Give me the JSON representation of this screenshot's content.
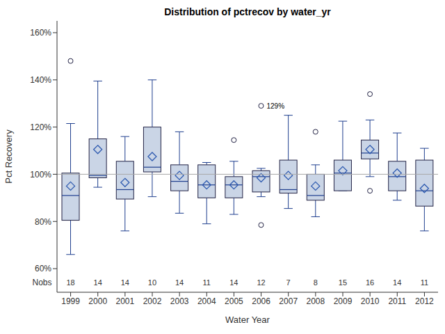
{
  "chart_data": {
    "type": "box",
    "title": "Distribution of pctrecov by water_yr",
    "x_label": "Water Year",
    "y_label": "Pct Recovery",
    "categories": [
      "1999",
      "2000",
      "2001",
      "2002",
      "2003",
      "2004",
      "2005",
      "2006",
      "2007",
      "2008",
      "2009",
      "2010",
      "2011",
      "2012"
    ],
    "boxes": [
      {
        "whisker_low": 66,
        "q1": 80.5,
        "median": 91,
        "q3": 100.5,
        "whisker_high": 121.5,
        "mean": 95,
        "outliers": [
          148
        ],
        "n": 18
      },
      {
        "whisker_low": 94.5,
        "q1": 98.5,
        "median": 99.5,
        "q3": 115,
        "whisker_high": 139.5,
        "mean": 110.5,
        "outliers": [],
        "n": 14
      },
      {
        "whisker_low": 76,
        "q1": 89.5,
        "median": 93.5,
        "q3": 105.5,
        "whisker_high": 116,
        "mean": 96.5,
        "outliers": [],
        "n": 14
      },
      {
        "whisker_low": 90.5,
        "q1": 101,
        "median": 103,
        "q3": 120,
        "whisker_high": 140,
        "mean": 107.5,
        "outliers": [],
        "n": 10
      },
      {
        "whisker_low": 83.5,
        "q1": 93,
        "median": 97,
        "q3": 104,
        "whisker_high": 118,
        "mean": 99.5,
        "outliers": [],
        "n": 14
      },
      {
        "whisker_low": 79,
        "q1": 90,
        "median": 95.5,
        "q3": 104,
        "whisker_high": 105,
        "mean": 95.5,
        "outliers": [],
        "n": 11
      },
      {
        "whisker_low": 83,
        "q1": 90,
        "median": 95.5,
        "q3": 99,
        "whisker_high": 105.5,
        "mean": 95.5,
        "outliers": [
          114.5
        ],
        "n": 14
      },
      {
        "whisker_low": 90.5,
        "q1": 92.5,
        "median": 99,
        "q3": 101.5,
        "whisker_high": 102.5,
        "mean": 98.5,
        "outliers": [
          78.5,
          129
        ],
        "n": 12
      },
      {
        "whisker_low": 85.5,
        "q1": 92,
        "median": 93.5,
        "q3": 106,
        "whisker_high": 125,
        "mean": 99.5,
        "outliers": [],
        "n": 7
      },
      {
        "whisker_low": 82,
        "q1": 89,
        "median": 91,
        "q3": 100,
        "whisker_high": 104,
        "mean": 95,
        "outliers": [
          118
        ],
        "n": 8
      },
      {
        "whisker_low": 93,
        "q1": 93,
        "median": 100.5,
        "q3": 106,
        "whisker_high": 122.5,
        "mean": 101.5,
        "outliers": [],
        "n": 15
      },
      {
        "whisker_low": 99,
        "q1": 106.5,
        "median": 109,
        "q3": 114.5,
        "whisker_high": 123,
        "mean": 110.5,
        "outliers": [
          93,
          134
        ],
        "n": 16
      },
      {
        "whisker_low": 89,
        "q1": 93,
        "median": 99,
        "q3": 105.5,
        "whisker_high": 117.5,
        "mean": 100.5,
        "outliers": [],
        "n": 14
      },
      {
        "whisker_low": 76,
        "q1": 86.5,
        "median": 93,
        "q3": 106,
        "whisker_high": 111,
        "mean": 94,
        "outliers": [],
        "n": 11
      }
    ],
    "nobs_label": "Nobs",
    "annotations": [
      {
        "category": "2006",
        "value": 129,
        "text": "129%"
      }
    ],
    "reference_line": 100,
    "color": "#cad5e6",
    "ylim": [
      50,
      165
    ],
    "yticks": [
      {
        "value": 60,
        "label": "60%"
      },
      {
        "value": 80,
        "label": "80%"
      },
      {
        "value": 100,
        "label": "100%"
      },
      {
        "value": 120,
        "label": "120%"
      },
      {
        "value": 140,
        "label": "140%"
      },
      {
        "value": 160,
        "label": "160%"
      }
    ]
  }
}
